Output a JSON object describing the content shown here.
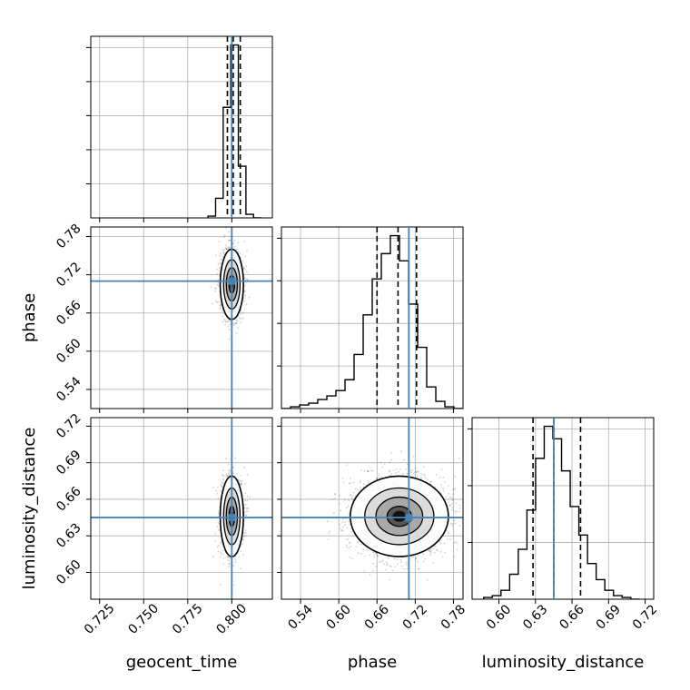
{
  "chart_data": {
    "type": "corner",
    "parameters": [
      "geocent_time",
      "phase",
      "luminosity_distance"
    ],
    "truths": {
      "geocent_time": 0.8,
      "phase": 0.71,
      "luminosity_distance": 0.645
    },
    "colors": {
      "truth": "#4682b4",
      "line": "#000000",
      "grid": "#b0b0b0"
    },
    "grid": true,
    "panels": {
      "geocent_time_hist": {
        "xlim": [
          0.72,
          0.823
        ],
        "ytick_count": 5,
        "quantiles": [
          0.7975,
          0.8008,
          0.8048
        ],
        "bin_edges": [
          0.7865,
          0.7908,
          0.7951,
          0.7994,
          0.8037,
          0.808,
          0.8123,
          0.8166
        ],
        "counts": [
          0.01,
          0.11,
          0.62,
          0.97,
          0.29,
          0.02,
          0.0
        ]
      },
      "phase_vs_geocent_time": {
        "xlim": [
          0.72,
          0.823
        ],
        "ylim": [
          0.51,
          0.795
        ],
        "x_ticks": [
          0.725,
          0.75,
          0.775,
          0.8
        ],
        "y_ticks": [
          0.54,
          0.6,
          0.66,
          0.72,
          0.78
        ],
        "y_tick_labels": [
          "0.54",
          "0.60",
          "0.66",
          "0.72",
          "0.78"
        ],
        "mean": [
          0.8,
          0.705
        ],
        "sd": [
          0.003,
          0.025
        ]
      },
      "phase_hist": {
        "xlim": [
          0.51,
          0.795
        ],
        "ytick_count": 4,
        "quantiles": [
          0.66,
          0.693,
          0.722
        ],
        "bin_edges": [
          0.51,
          0.5243,
          0.5385,
          0.5528,
          0.567,
          0.5813,
          0.5955,
          0.6098,
          0.624,
          0.6383,
          0.6525,
          0.6668,
          0.681,
          0.6953,
          0.7095,
          0.7238,
          0.738,
          0.7523,
          0.7665,
          0.7808,
          0.795
        ],
        "counts": [
          0.0,
          0.01,
          0.02,
          0.03,
          0.05,
          0.07,
          0.1,
          0.16,
          0.3,
          0.52,
          0.72,
          0.86,
          0.96,
          0.82,
          0.58,
          0.34,
          0.12,
          0.04,
          0.01,
          0.0
        ]
      },
      "luminosity_distance_vs_geocent_time": {
        "xlim": [
          0.72,
          0.823
        ],
        "ylim": [
          0.578,
          0.727
        ],
        "x_ticks": [
          0.725,
          0.75,
          0.775,
          0.8
        ],
        "x_tick_labels": [
          "0.725",
          "0.750",
          "0.775",
          "0.800"
        ],
        "y_ticks": [
          0.6,
          0.63,
          0.66,
          0.69,
          0.72
        ],
        "y_tick_labels": [
          "0.60",
          "0.63",
          "0.66",
          "0.69",
          "0.72"
        ],
        "mean": [
          0.8,
          0.646
        ],
        "sd": [
          0.003,
          0.015
        ]
      },
      "luminosity_distance_vs_phase": {
        "xlim": [
          0.51,
          0.795
        ],
        "ylim": [
          0.578,
          0.727
        ],
        "x_ticks": [
          0.54,
          0.6,
          0.66,
          0.72,
          0.78
        ],
        "x_tick_labels": [
          "0.54",
          "0.60",
          "0.66",
          "0.72",
          "0.78"
        ],
        "mean": [
          0.695,
          0.646
        ],
        "sd": [
          0.035,
          0.015
        ]
      },
      "luminosity_distance_hist": {
        "xlim": [
          0.578,
          0.727
        ],
        "ytick_count": 3,
        "x_ticks": [
          0.6,
          0.63,
          0.66,
          0.69,
          0.72
        ],
        "x_tick_labels": [
          "0.60",
          "0.63",
          "0.66",
          "0.69",
          "0.72"
        ],
        "quantiles": [
          0.628,
          0.645,
          0.667
        ],
        "bin_edges": [
          0.5875,
          0.5946,
          0.6017,
          0.6088,
          0.6159,
          0.623,
          0.6301,
          0.6372,
          0.6443,
          0.6514,
          0.6585,
          0.6656,
          0.6727,
          0.6798,
          0.6869,
          0.694,
          0.7011,
          0.7082,
          0.7153
        ],
        "counts": [
          0.01,
          0.02,
          0.05,
          0.14,
          0.28,
          0.5,
          0.79,
          0.97,
          0.9,
          0.72,
          0.52,
          0.36,
          0.2,
          0.11,
          0.05,
          0.02,
          0.01,
          0.0
        ]
      }
    }
  }
}
